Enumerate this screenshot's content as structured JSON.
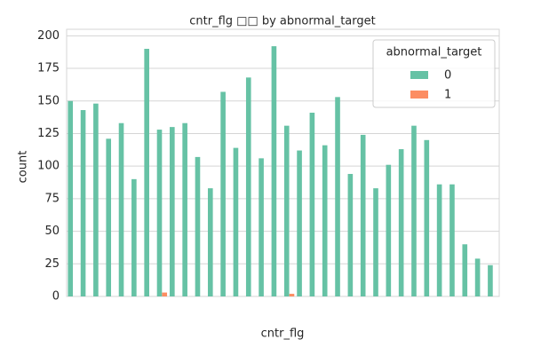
{
  "chart_data": {
    "type": "bar",
    "title": "cntr_flg □□ by abnormal_target",
    "x_label": "cntr_flg",
    "y_label": "count",
    "legend_title": "abnormal_target",
    "legend": "upper right",
    "categories": [
      null,
      null,
      null,
      null,
      null,
      null,
      null,
      null,
      null,
      null,
      null,
      null,
      null,
      null,
      null,
      null,
      null,
      null,
      null,
      null,
      null,
      null,
      null,
      null,
      null,
      null,
      null,
      null,
      null,
      null,
      null,
      null,
      null,
      null
    ],
    "series": [
      {
        "name": "0",
        "color": "#66c2a5",
        "values": [
          150,
          143,
          148,
          121,
          133,
          90,
          190,
          128,
          130,
          133,
          107,
          83,
          157,
          114,
          168,
          106,
          192,
          131,
          112,
          141,
          116,
          153,
          94,
          124,
          83,
          101,
          113,
          131,
          120,
          86,
          86,
          40,
          29,
          24
        ]
      },
      {
        "name": "1",
        "color": "#fc8d62",
        "values": [
          0,
          0,
          0,
          0,
          0,
          0,
          0,
          3,
          0,
          0,
          0,
          0,
          0,
          0,
          0,
          0,
          0,
          2,
          0,
          0,
          0,
          0,
          0,
          0,
          0,
          0,
          0,
          0,
          0,
          0,
          0,
          0,
          0,
          0
        ]
      }
    ],
    "ylim": [
      0,
      205
    ],
    "yticks": [
      0,
      25,
      50,
      75,
      100,
      125,
      150,
      175,
      200
    ],
    "grid": true
  }
}
